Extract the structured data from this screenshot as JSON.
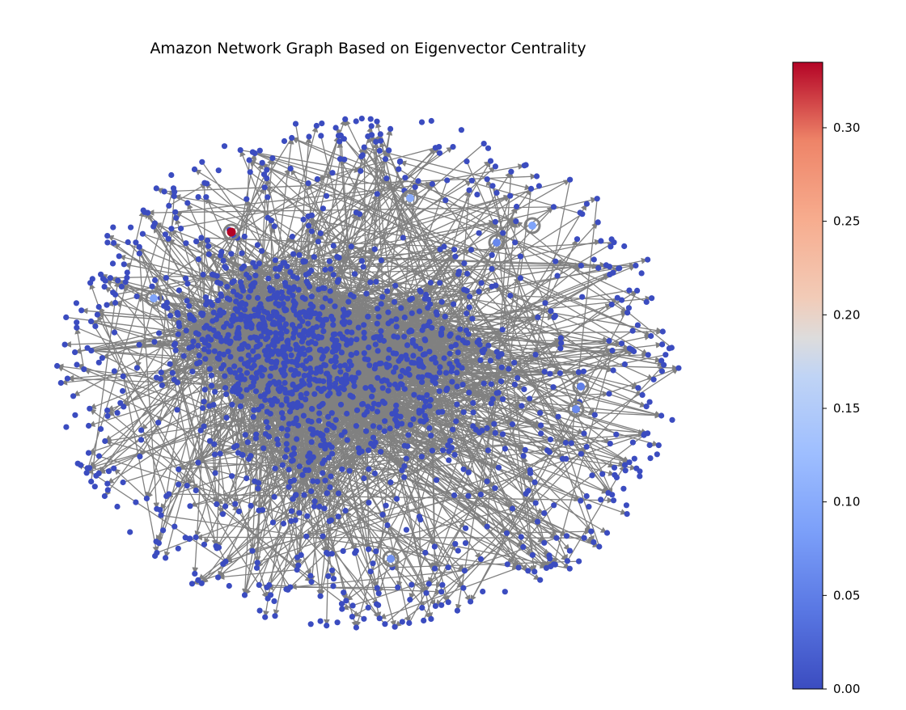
{
  "title": "Amazon Network Graph Based on Eigenvector Centrality",
  "colorbar": {
    "colormap": "coolwarm",
    "min": 0.0,
    "max": 0.335,
    "ticks": [
      "0.00",
      "0.05",
      "0.10",
      "0.15",
      "0.20",
      "0.25",
      "0.30"
    ],
    "tick_values": [
      0.0,
      0.05,
      0.1,
      0.15,
      0.2,
      0.25,
      0.3
    ]
  },
  "colors": {
    "node_default": "#3b4cc0",
    "edge": "#808080",
    "node_max": "#b40426",
    "node_light": "#8caefc"
  },
  "graph": {
    "directed": true,
    "highlighted_nodes": [
      {
        "centrality": 0.335
      },
      {
        "centrality": 0.1
      },
      {
        "centrality": 0.09
      },
      {
        "centrality": 0.09
      },
      {
        "centrality": 0.07
      },
      {
        "centrality": 0.06
      },
      {
        "centrality": 0.06
      },
      {
        "centrality": 0.05
      }
    ]
  }
}
